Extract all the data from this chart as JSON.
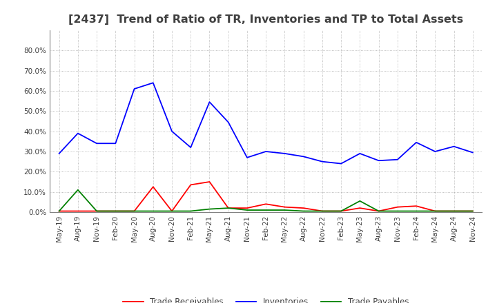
{
  "title": "[2437]  Trend of Ratio of TR, Inventories and TP to Total Assets",
  "x_labels": [
    "May-19",
    "Aug-19",
    "Nov-19",
    "Feb-20",
    "May-20",
    "Aug-20",
    "Nov-20",
    "Feb-21",
    "May-21",
    "Aug-21",
    "Nov-21",
    "Feb-22",
    "May-22",
    "Aug-22",
    "Nov-22",
    "Feb-23",
    "May-23",
    "Aug-23",
    "Nov-23",
    "Feb-24",
    "May-24",
    "Aug-24",
    "Nov-24"
  ],
  "trade_receivables": [
    0.5,
    0.5,
    0.5,
    0.5,
    0.5,
    12.5,
    0.5,
    13.5,
    15.0,
    2.0,
    2.0,
    4.0,
    2.5,
    2.0,
    0.5,
    0.5,
    2.0,
    0.5,
    2.5,
    3.0,
    0.5,
    0.5,
    0.5
  ],
  "inventories": [
    29.0,
    39.0,
    34.0,
    34.0,
    61.0,
    64.0,
    40.0,
    32.0,
    54.5,
    44.5,
    27.0,
    30.0,
    29.0,
    27.5,
    25.0,
    24.0,
    29.0,
    25.5,
    26.0,
    34.5,
    30.0,
    32.5,
    29.5
  ],
  "trade_payables": [
    0.5,
    11.0,
    0.5,
    0.5,
    0.5,
    0.5,
    0.5,
    0.5,
    1.5,
    2.0,
    1.0,
    1.0,
    1.0,
    0.5,
    0.5,
    0.5,
    5.5,
    0.5,
    0.5,
    0.5,
    0.5,
    0.5,
    0.5
  ],
  "tr_color": "#ff0000",
  "inv_color": "#0000ff",
  "tp_color": "#008000",
  "ylim": [
    0.0,
    90.0
  ],
  "yticks": [
    0.0,
    10.0,
    20.0,
    30.0,
    40.0,
    50.0,
    60.0,
    70.0,
    80.0
  ],
  "ytick_labels": [
    "0.0%",
    "10.0%",
    "20.0%",
    "30.0%",
    "40.0%",
    "50.0%",
    "60.0%",
    "70.0%",
    "80.0%"
  ],
  "legend_labels": [
    "Trade Receivables",
    "Inventories",
    "Trade Payables"
  ],
  "background_color": "#ffffff",
  "plot_bg_color": "#ffffff",
  "grid_color": "#aaaaaa",
  "title_fontsize": 11.5,
  "tick_fontsize": 7.5,
  "legend_fontsize": 8.5,
  "title_color": "#404040",
  "tick_color": "#404040"
}
